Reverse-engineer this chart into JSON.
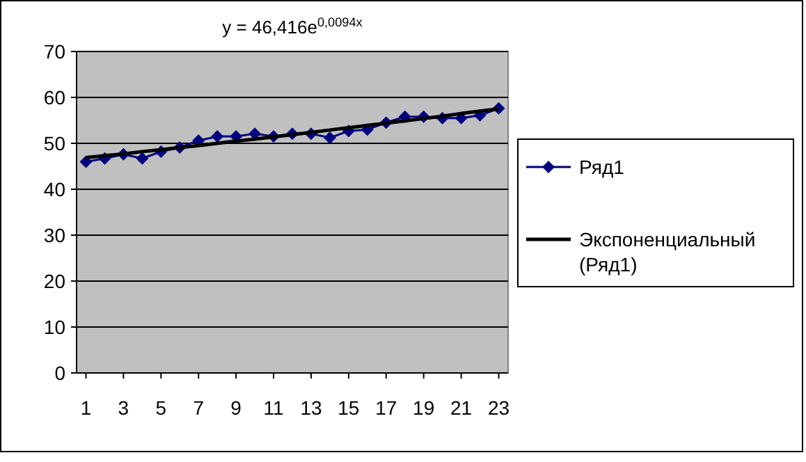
{
  "chart_data": {
    "type": "line",
    "title": "y = 46,416e$^{0,0094x}$",
    "x": [
      1,
      2,
      3,
      4,
      5,
      6,
      7,
      8,
      9,
      10,
      11,
      12,
      13,
      14,
      15,
      16,
      17,
      18,
      19,
      20,
      21,
      22,
      23
    ],
    "xlim": [
      0.5,
      23.5
    ],
    "xticks": [
      1,
      3,
      5,
      7,
      9,
      11,
      13,
      15,
      17,
      19,
      21,
      23
    ],
    "series": [
      {
        "name": "Ряд1",
        "color": "#000080",
        "marker": "diamond",
        "values": [
          46.0,
          46.7,
          47.6,
          46.7,
          48.2,
          49.1,
          50.6,
          51.5,
          51.5,
          52.1,
          51.5,
          52.1,
          52.1,
          51.2,
          52.7,
          53.0,
          54.5,
          55.8,
          55.8,
          55.5,
          55.5,
          56.1,
          57.6
        ]
      },
      {
        "name": "Экспоненциальный (Ряд1)",
        "color": "#000000",
        "marker": "none",
        "values": [
          46.9,
          47.3,
          47.7,
          48.2,
          48.6,
          49.1,
          49.5,
          50.0,
          50.5,
          50.9,
          51.4,
          51.9,
          52.4,
          52.9,
          53.4,
          53.9,
          54.4,
          54.9,
          55.4,
          55.9,
          56.5,
          57.0,
          57.5
        ]
      }
    ],
    "ylim": [
      0,
      70
    ],
    "yticks": [
      0,
      10,
      20,
      30,
      40,
      50,
      60,
      70
    ],
    "grid": "y",
    "legend": "right"
  }
}
